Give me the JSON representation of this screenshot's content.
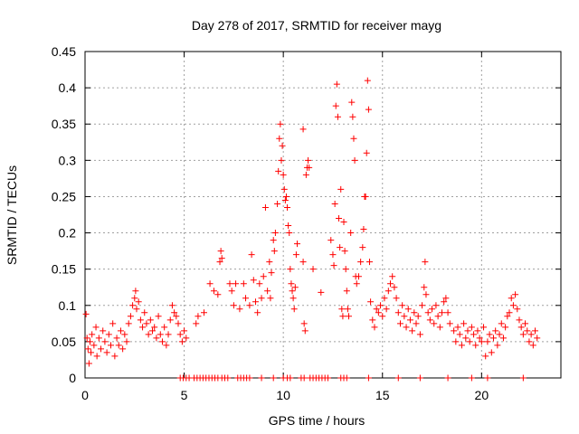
{
  "chart_data": {
    "type": "scatter",
    "title": "Day 278 of 2017, SRMTID for receiver mayg",
    "xlabel": "GPS time / hours",
    "ylabel": "SRMTID / TECUs",
    "xlim": [
      0,
      24
    ],
    "ylim": [
      0,
      0.45
    ],
    "xticks": [
      0,
      5,
      10,
      15,
      20
    ],
    "xtick_labels": [
      "0",
      "5",
      "10",
      "15",
      "20"
    ],
    "yticks": [
      0,
      0.05,
      0.1,
      0.15,
      0.2,
      0.25,
      0.3,
      0.35,
      0.4,
      0.45
    ],
    "ytick_labels": [
      "0",
      "0.05",
      "0.1",
      "0.15",
      "0.2",
      "0.25",
      "0.3",
      "0.35",
      "0.4",
      "0.45"
    ],
    "grid": true,
    "marker": "+",
    "marker_color": "#ff0000",
    "series": [
      {
        "name": "SRMTID",
        "points": [
          [
            0.05,
            0.088
          ],
          [
            0.1,
            0.055
          ],
          [
            0.15,
            0.04
          ],
          [
            0.2,
            0.02
          ],
          [
            0.25,
            0.05
          ],
          [
            0.3,
            0.035
          ],
          [
            0.35,
            0.06
          ],
          [
            0.45,
            0.045
          ],
          [
            0.55,
            0.07
          ],
          [
            0.6,
            0.03
          ],
          [
            0.7,
            0.055
          ],
          [
            0.8,
            0.04
          ],
          [
            0.9,
            0.065
          ],
          [
            1.0,
            0.05
          ],
          [
            1.1,
            0.035
          ],
          [
            1.2,
            0.06
          ],
          [
            1.3,
            0.045
          ],
          [
            1.4,
            0.075
          ],
          [
            1.5,
            0.03
          ],
          [
            1.6,
            0.055
          ],
          [
            1.7,
            0.045
          ],
          [
            1.8,
            0.065
          ],
          [
            1.9,
            0.04
          ],
          [
            2.0,
            0.06
          ],
          [
            2.1,
            0.05
          ],
          [
            2.2,
            0.075
          ],
          [
            2.3,
            0.085
          ],
          [
            2.4,
            0.1
          ],
          [
            2.5,
            0.11
          ],
          [
            2.55,
            0.12
          ],
          [
            2.6,
            0.095
          ],
          [
            2.7,
            0.105
          ],
          [
            2.8,
            0.08
          ],
          [
            2.9,
            0.07
          ],
          [
            3.0,
            0.09
          ],
          [
            3.1,
            0.075
          ],
          [
            3.2,
            0.06
          ],
          [
            3.3,
            0.08
          ],
          [
            3.4,
            0.065
          ],
          [
            3.5,
            0.07
          ],
          [
            3.6,
            0.055
          ],
          [
            3.7,
            0.085
          ],
          [
            3.8,
            0.06
          ],
          [
            3.9,
            0.05
          ],
          [
            4.0,
            0.07
          ],
          [
            4.1,
            0.045
          ],
          [
            4.2,
            0.06
          ],
          [
            4.3,
            0.08
          ],
          [
            4.4,
            0.1
          ],
          [
            4.5,
            0.09
          ],
          [
            4.6,
            0.085
          ],
          [
            4.7,
            0.075
          ],
          [
            4.8,
            0.06
          ],
          [
            4.9,
            0.05
          ],
          [
            5.0,
            0.065
          ],
          [
            5.1,
            0.055
          ],
          [
            5.6,
            0.075
          ],
          [
            5.7,
            0.085
          ],
          [
            6.0,
            0.09
          ],
          [
            6.3,
            0.13
          ],
          [
            6.5,
            0.12
          ],
          [
            6.7,
            0.115
          ],
          [
            6.8,
            0.16
          ],
          [
            6.85,
            0.175
          ],
          [
            6.9,
            0.165
          ],
          [
            7.3,
            0.13
          ],
          [
            7.4,
            0.12
          ],
          [
            7.5,
            0.1
          ],
          [
            7.6,
            0.13
          ],
          [
            7.8,
            0.095
          ],
          [
            8.0,
            0.13
          ],
          [
            8.1,
            0.11
          ],
          [
            8.3,
            0.1
          ],
          [
            8.4,
            0.17
          ],
          [
            8.5,
            0.135
          ],
          [
            8.6,
            0.105
          ],
          [
            8.7,
            0.09
          ],
          [
            8.8,
            0.13
          ],
          [
            8.9,
            0.11
          ],
          [
            9.0,
            0.14
          ],
          [
            9.1,
            0.235
          ],
          [
            9.2,
            0.12
          ],
          [
            9.3,
            0.16
          ],
          [
            9.35,
            0.11
          ],
          [
            9.4,
            0.145
          ],
          [
            9.5,
            0.19
          ],
          [
            9.55,
            0.175
          ],
          [
            9.6,
            0.2
          ],
          [
            9.7,
            0.24
          ],
          [
            9.75,
            0.285
          ],
          [
            9.8,
            0.33
          ],
          [
            9.85,
            0.35
          ],
          [
            9.9,
            0.3
          ],
          [
            9.95,
            0.32
          ],
          [
            10.0,
            0.28
          ],
          [
            10.05,
            0.26
          ],
          [
            10.1,
            0.245
          ],
          [
            10.15,
            0.25
          ],
          [
            10.2,
            0.235
          ],
          [
            10.25,
            0.21
          ],
          [
            10.3,
            0.2
          ],
          [
            10.35,
            0.15
          ],
          [
            10.4,
            0.13
          ],
          [
            10.45,
            0.12
          ],
          [
            10.5,
            0.11
          ],
          [
            10.55,
            0.095
          ],
          [
            10.6,
            0.125
          ],
          [
            10.65,
            0.17
          ],
          [
            10.7,
            0.185
          ],
          [
            11.0,
            0.16
          ],
          [
            11.05,
            0.075
          ],
          [
            11.1,
            0.065
          ],
          [
            11.15,
            0.28
          ],
          [
            11.2,
            0.29
          ],
          [
            11.25,
            0.3
          ],
          [
            11.3,
            0.29
          ],
          [
            11.0,
            0.343
          ],
          [
            11.5,
            0.15
          ],
          [
            11.9,
            0.118
          ],
          [
            12.4,
            0.19
          ],
          [
            12.5,
            0.17
          ],
          [
            12.55,
            0.155
          ],
          [
            12.6,
            0.24
          ],
          [
            12.65,
            0.375
          ],
          [
            12.7,
            0.405
          ],
          [
            12.75,
            0.36
          ],
          [
            12.8,
            0.22
          ],
          [
            12.85,
            0.18
          ],
          [
            12.9,
            0.26
          ],
          [
            12.95,
            0.095
          ],
          [
            13.0,
            0.085
          ],
          [
            13.05,
            0.215
          ],
          [
            13.1,
            0.175
          ],
          [
            13.15,
            0.15
          ],
          [
            13.2,
            0.12
          ],
          [
            13.25,
            0.095
          ],
          [
            13.3,
            0.085
          ],
          [
            13.4,
            0.2
          ],
          [
            13.45,
            0.38
          ],
          [
            13.5,
            0.36
          ],
          [
            13.55,
            0.33
          ],
          [
            13.6,
            0.3
          ],
          [
            13.65,
            0.14
          ],
          [
            13.7,
            0.13
          ],
          [
            13.8,
            0.14
          ],
          [
            13.9,
            0.16
          ],
          [
            14.0,
            0.18
          ],
          [
            14.05,
            0.205
          ],
          [
            14.1,
            0.25
          ],
          [
            14.15,
            0.25
          ],
          [
            14.2,
            0.31
          ],
          [
            14.25,
            0.41
          ],
          [
            14.3,
            0.37
          ],
          [
            14.35,
            0.16
          ],
          [
            14.4,
            0.105
          ],
          [
            14.5,
            0.08
          ],
          [
            14.6,
            0.07
          ],
          [
            14.7,
            0.095
          ],
          [
            14.8,
            0.09
          ],
          [
            14.9,
            0.1
          ],
          [
            15.0,
            0.085
          ],
          [
            15.1,
            0.11
          ],
          [
            15.2,
            0.095
          ],
          [
            15.3,
            0.12
          ],
          [
            15.4,
            0.13
          ],
          [
            15.5,
            0.14
          ],
          [
            15.6,
            0.125
          ],
          [
            15.7,
            0.11
          ],
          [
            15.8,
            0.09
          ],
          [
            15.9,
            0.075
          ],
          [
            16.0,
            0.1
          ],
          [
            16.1,
            0.085
          ],
          [
            16.2,
            0.07
          ],
          [
            16.3,
            0.095
          ],
          [
            16.4,
            0.08
          ],
          [
            16.5,
            0.065
          ],
          [
            16.6,
            0.09
          ],
          [
            16.7,
            0.075
          ],
          [
            16.8,
            0.085
          ],
          [
            16.9,
            0.06
          ],
          [
            17.0,
            0.1
          ],
          [
            17.1,
            0.125
          ],
          [
            17.15,
            0.16
          ],
          [
            17.2,
            0.115
          ],
          [
            17.3,
            0.09
          ],
          [
            17.4,
            0.08
          ],
          [
            17.5,
            0.095
          ],
          [
            17.6,
            0.075
          ],
          [
            17.7,
            0.1
          ],
          [
            17.8,
            0.085
          ],
          [
            17.9,
            0.07
          ],
          [
            18.0,
            0.09
          ],
          [
            18.1,
            0.105
          ],
          [
            18.2,
            0.11
          ],
          [
            18.3,
            0.09
          ],
          [
            18.4,
            0.075
          ],
          [
            18.6,
            0.065
          ],
          [
            18.7,
            0.05
          ],
          [
            18.8,
            0.07
          ],
          [
            18.9,
            0.06
          ],
          [
            19.0,
            0.045
          ],
          [
            19.1,
            0.075
          ],
          [
            19.2,
            0.055
          ],
          [
            19.3,
            0.065
          ],
          [
            19.4,
            0.05
          ],
          [
            19.5,
            0.07
          ],
          [
            19.6,
            0.06
          ],
          [
            19.7,
            0.045
          ],
          [
            19.8,
            0.065
          ],
          [
            19.9,
            0.055
          ],
          [
            20.0,
            0.05
          ],
          [
            20.1,
            0.07
          ],
          [
            20.2,
            0.03
          ],
          [
            20.3,
            0.05
          ],
          [
            20.4,
            0.06
          ],
          [
            20.5,
            0.035
          ],
          [
            20.6,
            0.055
          ],
          [
            20.7,
            0.065
          ],
          [
            20.8,
            0.045
          ],
          [
            20.9,
            0.06
          ],
          [
            21.0,
            0.075
          ],
          [
            21.1,
            0.055
          ],
          [
            21.2,
            0.07
          ],
          [
            21.3,
            0.085
          ],
          [
            21.4,
            0.09
          ],
          [
            21.5,
            0.11
          ],
          [
            21.6,
            0.1
          ],
          [
            21.7,
            0.115
          ],
          [
            21.8,
            0.095
          ],
          [
            21.9,
            0.08
          ],
          [
            22.0,
            0.07
          ],
          [
            22.1,
            0.06
          ],
          [
            22.2,
            0.075
          ],
          [
            22.3,
            0.065
          ],
          [
            22.4,
            0.05
          ],
          [
            22.5,
            0.06
          ],
          [
            22.6,
            0.045
          ],
          [
            22.7,
            0.065
          ],
          [
            22.8,
            0.055
          ]
        ]
      },
      {
        "name": "zero",
        "points": [
          [
            4.8,
            0
          ],
          [
            4.95,
            0
          ],
          [
            5.1,
            0
          ],
          [
            5.25,
            0
          ],
          [
            5.5,
            0
          ],
          [
            5.65,
            0
          ],
          [
            5.8,
            0
          ],
          [
            5.95,
            0
          ],
          [
            6.1,
            0
          ],
          [
            6.25,
            0
          ],
          [
            6.4,
            0
          ],
          [
            6.55,
            0
          ],
          [
            6.7,
            0
          ],
          [
            6.9,
            0
          ],
          [
            7.05,
            0
          ],
          [
            7.2,
            0
          ],
          [
            7.7,
            0
          ],
          [
            7.85,
            0
          ],
          [
            8.0,
            0
          ],
          [
            8.15,
            0
          ],
          [
            8.3,
            0
          ],
          [
            8.9,
            0
          ],
          [
            9.5,
            0
          ],
          [
            10.0,
            0
          ],
          [
            10.2,
            0
          ],
          [
            10.35,
            0
          ],
          [
            10.9,
            0
          ],
          [
            11.05,
            0
          ],
          [
            11.35,
            0
          ],
          [
            11.5,
            0
          ],
          [
            11.65,
            0
          ],
          [
            11.8,
            0
          ],
          [
            11.95,
            0
          ],
          [
            12.1,
            0
          ],
          [
            12.25,
            0
          ],
          [
            12.9,
            0
          ],
          [
            13.05,
            0
          ],
          [
            13.2,
            0
          ],
          [
            14.3,
            0
          ],
          [
            15.8,
            0
          ],
          [
            16.9,
            0
          ],
          [
            18.3,
            0
          ],
          [
            19.5,
            0
          ],
          [
            20.3,
            0
          ],
          [
            22.1,
            0
          ]
        ]
      }
    ]
  }
}
